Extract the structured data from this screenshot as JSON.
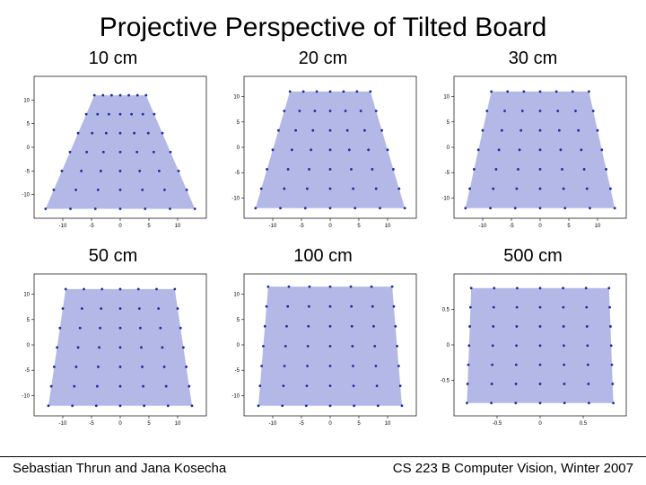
{
  "title": "Projective Perspective of Tilted Board",
  "footer_left": "Sebastian Thrun and Jana Kosecha",
  "footer_right": "CS 223 B Computer Vision, Winter 2007",
  "plot_style": {
    "fill_color": "#b3b8e6",
    "point_color": "#1a2fa0",
    "point_radius": 1.4,
    "axis_color": "#000000",
    "tick_fontsize": 6,
    "background_color": "#ffffff"
  },
  "grid_n": 7,
  "panels": [
    {
      "label": "10 cm",
      "xlim": [
        -15,
        15
      ],
      "ylim": [
        -15,
        15
      ],
      "xticks": [
        -10,
        -5,
        0,
        5,
        10
      ],
      "yticks": [
        -10,
        -5,
        0,
        5,
        10
      ],
      "trapezoid": [
        [
          -13,
          -13
        ],
        [
          13,
          -13
        ],
        [
          4.5,
          11
        ],
        [
          -4.5,
          11
        ]
      ]
    },
    {
      "label": "20 cm",
      "xlim": [
        -15,
        15
      ],
      "ylim": [
        -14,
        14
      ],
      "xticks": [
        -10,
        -5,
        0,
        5,
        10
      ],
      "yticks": [
        -10,
        -5,
        0,
        5,
        10
      ],
      "trapezoid": [
        [
          -13,
          -12
        ],
        [
          13,
          -12
        ],
        [
          7,
          11
        ],
        [
          -7,
          11
        ]
      ]
    },
    {
      "label": "30 cm",
      "xlim": [
        -15,
        15
      ],
      "ylim": [
        -14,
        14
      ],
      "xticks": [
        -10,
        -5,
        0,
        5,
        10
      ],
      "yticks": [
        -10,
        -5,
        0,
        5,
        10
      ],
      "trapezoid": [
        [
          -13,
          -12
        ],
        [
          13,
          -12
        ],
        [
          8.5,
          11
        ],
        [
          -8.5,
          11
        ]
      ]
    },
    {
      "label": "50 cm",
      "xlim": [
        -15,
        15
      ],
      "ylim": [
        -14,
        14
      ],
      "xticks": [
        -10,
        -5,
        0,
        5,
        10
      ],
      "yticks": [
        -10,
        -5,
        0,
        5,
        10
      ],
      "trapezoid": [
        [
          -12.5,
          -12
        ],
        [
          12.5,
          -12
        ],
        [
          9.5,
          11
        ],
        [
          -9.5,
          11
        ]
      ]
    },
    {
      "label": "100 cm",
      "xlim": [
        -15,
        15
      ],
      "ylim": [
        -14,
        14
      ],
      "xticks": [
        -10,
        -5,
        0,
        5,
        10
      ],
      "yticks": [
        -10,
        -5,
        0,
        5,
        10
      ],
      "trapezoid": [
        [
          -12.5,
          -12
        ],
        [
          12.5,
          -12
        ],
        [
          10.8,
          11.5
        ],
        [
          -10.8,
          11.5
        ]
      ]
    },
    {
      "label": "500 cm",
      "xlim": [
        -1,
        1
      ],
      "ylim": [
        -1,
        1
      ],
      "xticks": [
        -0.5,
        0,
        0.5
      ],
      "yticks": [
        -0.5,
        0,
        0.5
      ],
      "trapezoid": [
        [
          -0.85,
          -0.82
        ],
        [
          0.85,
          -0.82
        ],
        [
          0.8,
          0.8
        ],
        [
          -0.8,
          0.8
        ]
      ]
    }
  ]
}
